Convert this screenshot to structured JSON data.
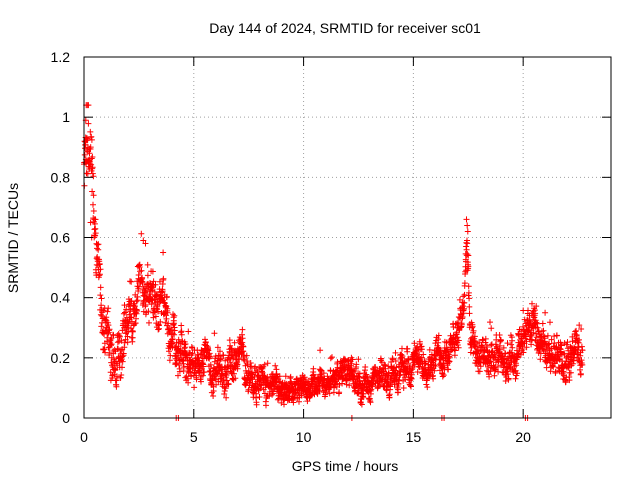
{
  "chart_data": {
    "type": "scatter",
    "title": "Day 144 of 2024, SRMTID for receiver sc01",
    "xlabel": "GPS time / hours",
    "ylabel": "SRMTID / TECUs",
    "xlim": [
      0,
      24
    ],
    "ylim": [
      0,
      1.2
    ],
    "grid": true,
    "marker": "+",
    "marker_color": "#ff0000",
    "x_ticks": [
      0,
      5,
      10,
      15,
      20
    ],
    "x_tick_labels": [
      "0",
      "5",
      "10",
      "15",
      "20"
    ],
    "y_ticks": [
      0,
      0.2,
      0.4,
      0.6,
      0.8,
      1.0,
      1.2
    ],
    "y_tick_labels": [
      "0",
      "0.2",
      "0.4",
      "0.6",
      "0.8",
      "1",
      "1.2"
    ],
    "trend": {
      "x": [
        0.0,
        0.15,
        0.25,
        0.35,
        0.5,
        0.7,
        1.0,
        1.4,
        1.8,
        2.2,
        2.7,
        3.1,
        3.5,
        3.9,
        4.3,
        4.8,
        5.3,
        5.8,
        6.3,
        6.8,
        7.2,
        7.6,
        8.2,
        8.8,
        9.4,
        10.0,
        10.5,
        11.0,
        11.5,
        12.0,
        12.4,
        13.0,
        13.5,
        14.0,
        14.5,
        15.0,
        15.5,
        16.0,
        16.5,
        17.0,
        17.3,
        17.45,
        17.6,
        18.0,
        18.5,
        19.0,
        19.5,
        20.0,
        20.3,
        20.6,
        21.0,
        21.5,
        22.0,
        22.4,
        22.7
      ],
      "y": [
        0.78,
        0.85,
        0.92,
        0.8,
        0.62,
        0.38,
        0.3,
        0.22,
        0.3,
        0.35,
        0.4,
        0.42,
        0.36,
        0.3,
        0.24,
        0.18,
        0.2,
        0.16,
        0.14,
        0.18,
        0.22,
        0.14,
        0.12,
        0.11,
        0.1,
        0.09,
        0.1,
        0.12,
        0.14,
        0.16,
        0.12,
        0.11,
        0.13,
        0.14,
        0.16,
        0.18,
        0.19,
        0.2,
        0.22,
        0.26,
        0.4,
        0.6,
        0.28,
        0.2,
        0.18,
        0.19,
        0.2,
        0.24,
        0.32,
        0.26,
        0.24,
        0.2,
        0.15,
        0.24,
        0.18
      ]
    },
    "spread": {
      "x": [
        0,
        0.5,
        2,
        4.5,
        7,
        10,
        12.5,
        15,
        17.3,
        20,
        22.7
      ],
      "y": [
        0.1,
        0.09,
        0.08,
        0.06,
        0.05,
        0.035,
        0.04,
        0.045,
        0.05,
        0.05,
        0.05
      ]
    },
    "dense_points": 2600,
    "extra_points": [
      {
        "x": 0.1,
        "y": 1.04
      },
      {
        "x": 0.15,
        "y": 1.04
      },
      {
        "x": 0.2,
        "y": 1.04
      },
      {
        "x": 0.08,
        "y": 0.99
      },
      {
        "x": 0.12,
        "y": 0.93
      },
      {
        "x": 0.05,
        "y": 0.85
      },
      {
        "x": 0.18,
        "y": 0.9
      },
      {
        "x": 0.25,
        "y": 0.88
      },
      {
        "x": 0.3,
        "y": 0.65
      },
      {
        "x": 0.35,
        "y": 0.6
      },
      {
        "x": 17.42,
        "y": 0.66
      },
      {
        "x": 17.45,
        "y": 0.64
      },
      {
        "x": 17.48,
        "y": 0.62
      },
      {
        "x": 17.4,
        "y": 0.57
      },
      {
        "x": 17.5,
        "y": 0.54
      },
      {
        "x": 2.7,
        "y": 0.59
      },
      {
        "x": 2.8,
        "y": 0.58
      },
      {
        "x": 3.6,
        "y": 0.55
      },
      {
        "x": 20.4,
        "y": 0.38
      },
      {
        "x": 21.0,
        "y": 0.35
      }
    ],
    "zero_points_x": [
      4.2,
      4.3,
      12.2,
      16.3,
      16.4,
      20.1,
      20.2
    ]
  }
}
